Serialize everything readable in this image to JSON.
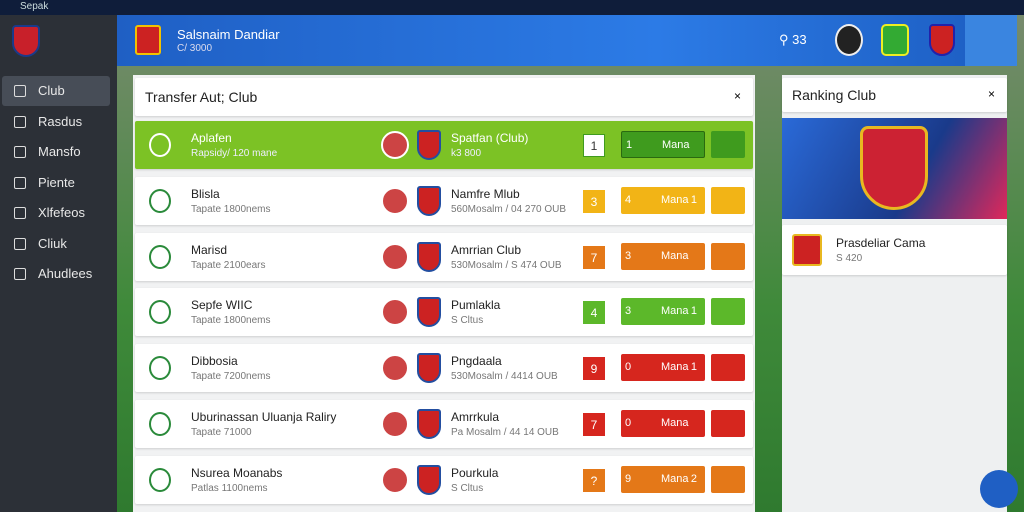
{
  "window": {
    "title": "Sepak"
  },
  "sidebar": {
    "items": [
      "Club",
      "Rasdus",
      "Mansfo",
      "Piente",
      "Xlfefeos",
      "Cliuk",
      "Ahudlees"
    ]
  },
  "header": {
    "title": "Salsnaim Dandiar",
    "subtitle": "C/ 3000",
    "search_count": "33"
  },
  "transfer_panel": {
    "title": "Transfer Aut; Club",
    "rows": [
      {
        "name": "Aplafen",
        "detail": "Rapsidy/ 120 mane",
        "club": "Spatfan (Club)",
        "club_detail": "k3 800",
        "badge": "1",
        "button_left": "1",
        "button_label": "Mana",
        "button_right": "",
        "color": "#3f9b1e",
        "highlight": true
      },
      {
        "name": "Blisla",
        "detail": "Tapate 1800nems",
        "club": "Namfre Mlub",
        "club_detail": "560Mosalm / 04 270 OUB",
        "badge": "3",
        "button_left": "4",
        "button_label": "Mana",
        "button_right": "1",
        "color": "#f2b416"
      },
      {
        "name": "Marisd",
        "detail": "Tapate 2100ears",
        "club": "Amrrian Club",
        "club_detail": "530Mosalm / S 474 OUB",
        "badge": "7",
        "button_left": "3",
        "button_label": "Mana",
        "button_right": "",
        "color": "#e47818"
      },
      {
        "name": "Sepfe WIIC",
        "detail": "Tapate 1800nems",
        "club": "Pumlakla",
        "club_detail": "S Cltus",
        "badge": "4",
        "button_left": "3",
        "button_label": "Mana",
        "button_right": "1",
        "color": "#5cb82a"
      },
      {
        "name": "Dibbosia",
        "detail": "Tapate 7200nems",
        "club": "Pngdaala",
        "club_detail": "530Mosalm / 4414 OUB",
        "badge": "9",
        "button_left": "0",
        "button_label": "Mana",
        "button_right": "1",
        "color": "#d6261e"
      },
      {
        "name": "Uburinassan Uluanja Raliry",
        "detail": "Tapate 71000",
        "club": "Amrrkula",
        "club_detail": "Pa Mosalm / 44 14 OUB",
        "badge": "7",
        "button_left": "0",
        "button_label": "Mana",
        "button_right": "",
        "color": "#d6261e"
      },
      {
        "name": "Nsurea Moanabs",
        "detail": "Patlas 1100nems",
        "club": "Pourkula",
        "club_detail": "S Cltus",
        "badge": "?",
        "button_left": "9",
        "button_label": "Mana",
        "button_right": "2",
        "color": "#e47818"
      }
    ]
  },
  "ranking_panel": {
    "title": "Ranking Club",
    "card_title": "Prasdeliar Cama",
    "card_detail": "S 420"
  }
}
